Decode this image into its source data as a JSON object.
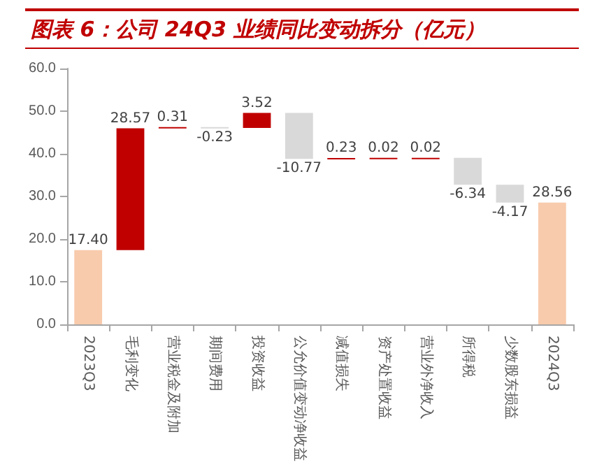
{
  "chart_data": {
    "type": "bar",
    "title": "图表 6：公司 24Q3 业绩同比变动拆分（亿元）",
    "categories": [
      "2023Q3",
      "毛利变化",
      "营业税金及附加",
      "期间费用",
      "投资收益",
      "公允价值变动净收益",
      "减值损失",
      "资产处置收益",
      "营业外净收入",
      "所得税",
      "少数股东损益",
      "2024Q3"
    ],
    "values": [
      17.4,
      28.57,
      0.31,
      -0.23,
      3.52,
      -10.77,
      0.23,
      0.02,
      0.02,
      -6.34,
      -4.17,
      28.56
    ],
    "base": [
      0,
      17.4,
      45.97,
      46.28,
      46.05,
      49.57,
      38.8,
      39.03,
      39.05,
      39.07,
      32.73,
      0
    ],
    "value_labels": [
      "17.40",
      "28.57",
      "0.31",
      "-0.23",
      "3.52",
      "-10.77",
      "0.23",
      "0.02",
      "0.02",
      "-6.34",
      "-4.17",
      "28.56"
    ],
    "colors": [
      "#f8cbad",
      "#c00000",
      "#c00000",
      "#d9d9d9",
      "#c00000",
      "#d9d9d9",
      "#c00000",
      "#c00000",
      "#c00000",
      "#d9d9d9",
      "#d9d9d9",
      "#f8cbad"
    ],
    "ylim": [
      0,
      60
    ],
    "yticks": [
      {
        "value": 0,
        "label": "0.0"
      },
      {
        "value": 10,
        "label": "10.0"
      },
      {
        "value": 20,
        "label": "20.0"
      },
      {
        "value": 30,
        "label": "30.0"
      },
      {
        "value": 40,
        "label": "40.0"
      },
      {
        "value": 50,
        "label": "50.0"
      },
      {
        "value": 60,
        "label": "60.0"
      }
    ],
    "grid": false
  }
}
